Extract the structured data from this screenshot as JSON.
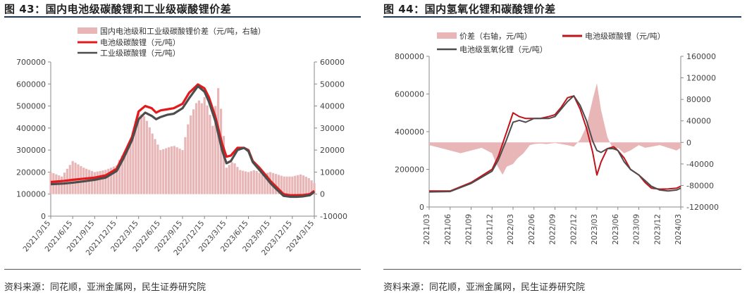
{
  "panels": [
    {
      "title": "图 43：国内电池级碳酸锂和工业级碳酸锂价差",
      "source": "资料来源：同花顺，亚洲金属网，民生证券研究院"
    },
    {
      "title": "图 44：国内氢氧化锂和碳酸锂价差",
      "source": "资料来源：同花顺，亚洲金属网，民生证券研究院"
    }
  ],
  "chart_data": [
    {
      "type": "line",
      "x_ticks": [
        "2021/3/15",
        "2021/6/15",
        "2021/9/15",
        "2021/12/15",
        "2022/3/15",
        "2022/6/15",
        "2022/9/15",
        "2022/12/15",
        "2023/3/15",
        "2023/6/15",
        "2023/9/15",
        "2023/12/15",
        "2024/3/15"
      ],
      "y_left": {
        "min": 0,
        "max": 700000,
        "step": 100000
      },
      "y_right": {
        "min": -10000,
        "max": 60000,
        "step": 10000
      },
      "legend": [
        {
          "name": "国内电池级和工业级碳酸锂价差（元/吨，右轴）",
          "type": "bar"
        },
        {
          "name": "电池级碳酸锂（元/吨）",
          "type": "line"
        },
        {
          "name": "工业级碳酸锂（元/吨）",
          "type": "line"
        }
      ],
      "colors": {
        "spread": "#e8b6b6",
        "battery": "#e3191c",
        "industrial": "#4d4d4d"
      },
      "series": [
        {
          "name": "电池级碳酸锂（元/吨）",
          "axis": "left",
          "x": [
            0,
            0.6,
            1,
            1.5,
            2,
            2.5,
            3,
            3.3,
            3.7,
            4,
            4.3,
            4.6,
            4.8,
            5,
            5.3,
            5.6,
            6,
            6.3,
            6.7,
            7,
            7.2,
            7.5,
            7.8,
            8,
            8.2,
            8.5,
            8.8,
            9,
            9.2,
            9.5,
            9.8,
            10,
            10.3,
            10.6,
            10.9,
            11.2,
            11.5,
            11.8,
            12
          ],
          "values": [
            155000,
            160000,
            165000,
            170000,
            175000,
            185000,
            215000,
            275000,
            360000,
            475000,
            500000,
            490000,
            470000,
            480000,
            485000,
            490000,
            510000,
            560000,
            598000,
            580000,
            540000,
            450000,
            330000,
            270000,
            275000,
            310000,
            310000,
            300000,
            250000,
            220000,
            185000,
            160000,
            130000,
            100000,
            95000,
            95000,
            96000,
            100000,
            115000
          ]
        },
        {
          "name": "工业级碳酸锂（元/吨）",
          "axis": "left",
          "x": [
            0,
            0.6,
            1,
            1.5,
            2,
            2.5,
            3,
            3.3,
            3.7,
            4,
            4.3,
            4.6,
            4.8,
            5,
            5.3,
            5.6,
            6,
            6.3,
            6.7,
            7,
            7.2,
            7.5,
            7.8,
            8,
            8.2,
            8.5,
            8.8,
            9,
            9.2,
            9.5,
            9.8,
            10,
            10.3,
            10.6,
            10.9,
            11.2,
            11.5,
            11.8,
            12
          ],
          "values": [
            145000,
            148000,
            152000,
            158000,
            165000,
            175000,
            205000,
            260000,
            345000,
            440000,
            470000,
            455000,
            440000,
            450000,
            460000,
            465000,
            490000,
            535000,
            590000,
            565000,
            520000,
            430000,
            300000,
            240000,
            250000,
            300000,
            310000,
            295000,
            245000,
            210000,
            175000,
            150000,
            120000,
            92000,
            88000,
            88000,
            90000,
            95000,
            110000
          ]
        },
        {
          "name": "国内电池级和工业级碳酸锂价差（元/吨，右轴）",
          "axis": "right",
          "x": [
            0,
            0.5,
            1,
            1.5,
            2,
            2.5,
            3,
            3.2,
            3.5,
            3.7,
            4,
            4.3,
            4.6,
            5,
            5.3,
            5.6,
            6,
            6.3,
            6.7,
            6.9,
            7,
            7.2,
            7.4,
            7.6,
            7.8,
            8,
            8.3,
            8.6,
            9,
            9.3,
            9.6,
            10,
            10.3,
            10.6,
            11,
            11.4,
            11.8,
            12
          ],
          "values": [
            10000,
            8000,
            15000,
            12000,
            10000,
            11000,
            13000,
            17000,
            20000,
            27000,
            37000,
            35000,
            28000,
            20000,
            21000,
            22000,
            20000,
            34000,
            43000,
            41000,
            44000,
            38000,
            30000,
            50000,
            35000,
            12000,
            15000,
            11000,
            10000,
            11000,
            9000,
            10000,
            9000,
            8000,
            8000,
            9000,
            7000,
            5000
          ]
        }
      ]
    },
    {
      "type": "line",
      "x_ticks": [
        "2021/03",
        "2021/06",
        "2021/09",
        "2021/12",
        "2022/03",
        "2022/06",
        "2022/09",
        "2022/12",
        "2023/03",
        "2023/06",
        "2023/09",
        "2023/12",
        "2024/03"
      ],
      "y_left": {
        "min": 0,
        "max": 800000,
        "step": 200000
      },
      "y_right": {
        "min": -120000,
        "max": 160000,
        "step": 40000
      },
      "legend": [
        {
          "name": "价差（右轴，元/吨）",
          "type": "area"
        },
        {
          "name": "电池级碳酸锂（元/吨）",
          "type": "line"
        },
        {
          "name": "电池级氢氧化锂（元/吨）",
          "type": "line"
        }
      ],
      "colors": {
        "spread": "#e8b6b6",
        "carbonate": "#c0141c",
        "hydroxide": "#4d4d4d"
      },
      "series": [
        {
          "name": "电池级碳酸锂（元/吨）",
          "axis": "left",
          "x": [
            0,
            1,
            2,
            3,
            3.3,
            3.7,
            4,
            4.3,
            4.6,
            5,
            5.3,
            5.7,
            6,
            6.3,
            6.6,
            6.9,
            7.2,
            7.5,
            7.8,
            8,
            8.2,
            8.5,
            8.8,
            9,
            9.3,
            9.6,
            10,
            10.3,
            10.6,
            11,
            11.4,
            11.8,
            12
          ],
          "values": [
            85000,
            85000,
            130000,
            200000,
            270000,
            400000,
            500000,
            480000,
            470000,
            470000,
            470000,
            480000,
            490000,
            530000,
            580000,
            590000,
            520000,
            420000,
            290000,
            170000,
            240000,
            310000,
            320000,
            300000,
            260000,
            200000,
            170000,
            130000,
            100000,
            95000,
            96000,
            100000,
            110000
          ]
        },
        {
          "name": "电池级氢氧化锂（元/吨）",
          "axis": "left",
          "x": [
            0,
            1,
            2,
            3,
            3.3,
            3.7,
            4,
            4.3,
            4.6,
            5,
            5.3,
            5.7,
            6,
            6.3,
            6.6,
            6.9,
            7.2,
            7.5,
            7.8,
            8,
            8.2,
            8.5,
            8.8,
            9,
            9.3,
            9.6,
            10,
            10.3,
            10.6,
            11,
            11.4,
            11.8,
            12
          ],
          "values": [
            80000,
            82000,
            125000,
            190000,
            250000,
            360000,
            450000,
            460000,
            450000,
            470000,
            470000,
            470000,
            480000,
            520000,
            560000,
            590000,
            540000,
            460000,
            350000,
            300000,
            290000,
            310000,
            310000,
            300000,
            240000,
            200000,
            170000,
            140000,
            110000,
            90000,
            85000,
            90000,
            100000
          ]
        },
        {
          "name": "价差（右轴，元/吨）",
          "axis": "right",
          "x": [
            0,
            0.5,
            1,
            1.5,
            2,
            2.5,
            3,
            3.2,
            3.5,
            3.7,
            4,
            4.2,
            4.5,
            4.8,
            5,
            5.3,
            5.6,
            6,
            6.3,
            6.6,
            6.9,
            7.2,
            7.5,
            7.8,
            8,
            8.2,
            8.5,
            8.8,
            9,
            9.3,
            9.6,
            10,
            10.3,
            10.6,
            11,
            11.4,
            11.8,
            12
          ],
          "values": [
            -5000,
            -10000,
            -15000,
            -20000,
            -15000,
            -10000,
            -20000,
            -40000,
            -60000,
            -45000,
            -40000,
            -30000,
            -20000,
            -5000,
            -3000,
            -2000,
            -3000,
            -1000,
            -3000,
            -5000,
            -8000,
            5000,
            30000,
            80000,
            110000,
            60000,
            10000,
            -15000,
            -10000,
            -20000,
            -15000,
            -5000,
            -10000,
            -8000,
            -5000,
            -10000,
            -15000,
            -10000
          ]
        }
      ]
    }
  ]
}
